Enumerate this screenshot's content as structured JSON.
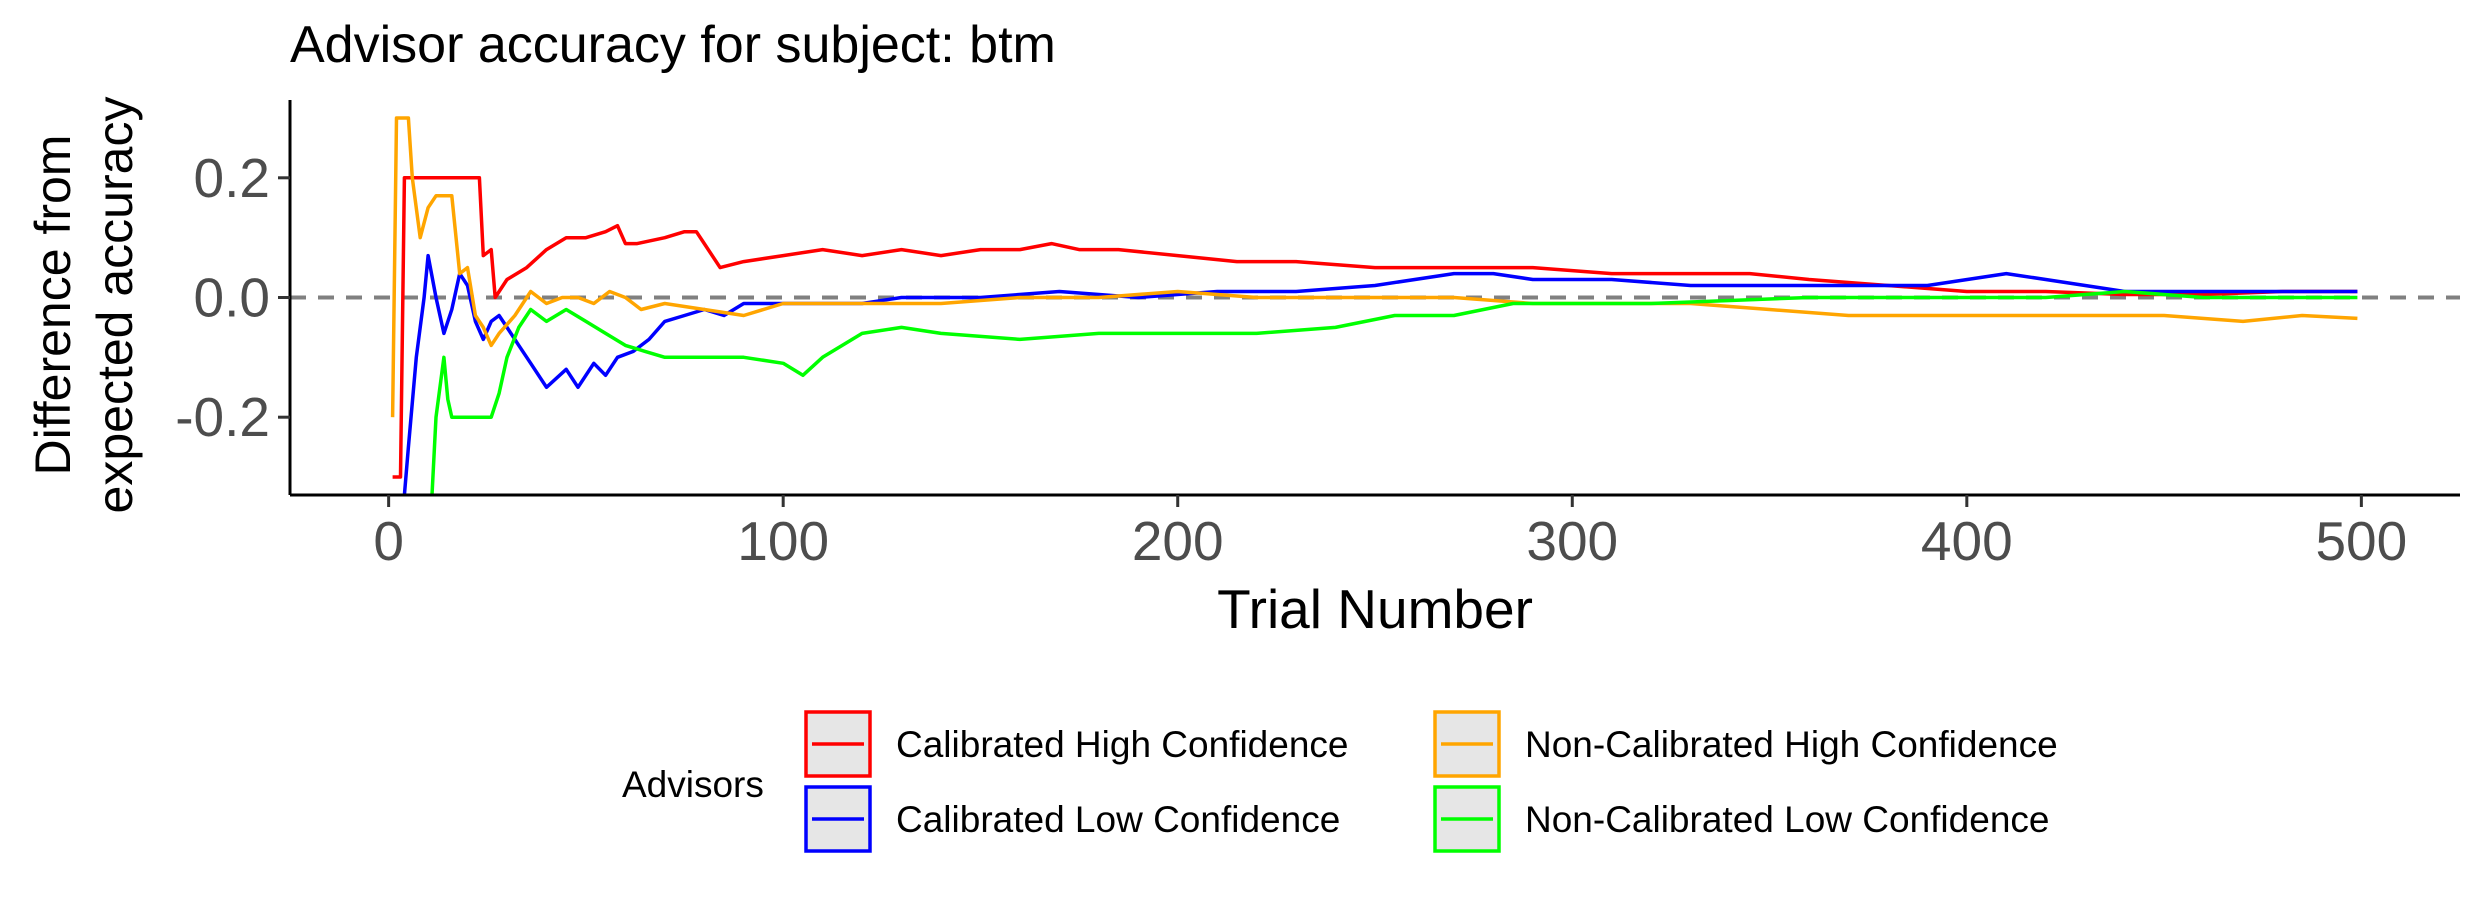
{
  "chart_data": {
    "type": "line",
    "title": "Advisor accuracy for subject: btm",
    "xlabel": "Trial Number",
    "ylabel": [
      "Difference from",
      "expected accuracy"
    ],
    "xlim": [
      -25,
      525
    ],
    "ylim": [
      -0.33,
      0.33
    ],
    "xticks": [
      0,
      100,
      200,
      300,
      400,
      500
    ],
    "yticks": [
      -0.2,
      0.0,
      0.2
    ],
    "xtick_labels": [
      "0",
      "100",
      "200",
      "300",
      "400",
      "500"
    ],
    "ytick_labels": [
      "-0.2",
      "0.0",
      "0.2"
    ],
    "reference_line": {
      "y": 0,
      "style": "dashed",
      "color": "#808080"
    },
    "grid": false,
    "legend": {
      "title": "Advisors",
      "position": "bottom",
      "entries": [
        "Calibrated High Confidence",
        "Non-Calibrated High Confidence",
        "Calibrated Low Confidence",
        "Non-Calibrated Low Confidence"
      ]
    },
    "series": [
      {
        "name": "Calibrated High Confidence",
        "color": "#ff0000",
        "points": [
          [
            1,
            -0.3
          ],
          [
            3,
            -0.3
          ],
          [
            4,
            0.2
          ],
          [
            10,
            0.2
          ],
          [
            16,
            0.2
          ],
          [
            20,
            0.2
          ],
          [
            23,
            0.2
          ],
          [
            24,
            0.07
          ],
          [
            26,
            0.08
          ],
          [
            27,
            0.0
          ],
          [
            30,
            0.03
          ],
          [
            35,
            0.05
          ],
          [
            40,
            0.08
          ],
          [
            45,
            0.1
          ],
          [
            50,
            0.1
          ],
          [
            55,
            0.11
          ],
          [
            58,
            0.12
          ],
          [
            60,
            0.09
          ],
          [
            63,
            0.09
          ],
          [
            70,
            0.1
          ],
          [
            75,
            0.11
          ],
          [
            78,
            0.11
          ],
          [
            80,
            0.09
          ],
          [
            84,
            0.05
          ],
          [
            90,
            0.06
          ],
          [
            100,
            0.07
          ],
          [
            110,
            0.08
          ],
          [
            120,
            0.07
          ],
          [
            130,
            0.08
          ],
          [
            140,
            0.07
          ],
          [
            150,
            0.08
          ],
          [
            160,
            0.08
          ],
          [
            168,
            0.09
          ],
          [
            175,
            0.08
          ],
          [
            185,
            0.08
          ],
          [
            200,
            0.07
          ],
          [
            215,
            0.06
          ],
          [
            230,
            0.06
          ],
          [
            250,
            0.05
          ],
          [
            270,
            0.05
          ],
          [
            290,
            0.05
          ],
          [
            310,
            0.04
          ],
          [
            330,
            0.04
          ],
          [
            345,
            0.04
          ],
          [
            360,
            0.03
          ],
          [
            380,
            0.02
          ],
          [
            400,
            0.01
          ],
          [
            420,
            0.01
          ],
          [
            440,
            0.005
          ],
          [
            460,
            0.005
          ],
          [
            480,
            0.01
          ],
          [
            499,
            0.01
          ]
        ]
      },
      {
        "name": "Calibrated Low Confidence",
        "color": "#0000ff",
        "points": [
          [
            4,
            -0.33
          ],
          [
            5,
            -0.25
          ],
          [
            7,
            -0.1
          ],
          [
            9,
            0.0
          ],
          [
            10,
            0.07
          ],
          [
            12,
            0.0
          ],
          [
            14,
            -0.06
          ],
          [
            16,
            -0.02
          ],
          [
            18,
            0.04
          ],
          [
            20,
            0.02
          ],
          [
            22,
            -0.04
          ],
          [
            24,
            -0.07
          ],
          [
            26,
            -0.04
          ],
          [
            28,
            -0.03
          ],
          [
            30,
            -0.05
          ],
          [
            33,
            -0.08
          ],
          [
            36,
            -0.11
          ],
          [
            40,
            -0.15
          ],
          [
            45,
            -0.12
          ],
          [
            48,
            -0.15
          ],
          [
            52,
            -0.11
          ],
          [
            55,
            -0.13
          ],
          [
            58,
            -0.1
          ],
          [
            62,
            -0.09
          ],
          [
            66,
            -0.07
          ],
          [
            70,
            -0.04
          ],
          [
            75,
            -0.03
          ],
          [
            80,
            -0.02
          ],
          [
            85,
            -0.03
          ],
          [
            90,
            -0.01
          ],
          [
            100,
            -0.01
          ],
          [
            110,
            -0.01
          ],
          [
            120,
            -0.01
          ],
          [
            130,
            0.0
          ],
          [
            150,
            0.0
          ],
          [
            170,
            0.01
          ],
          [
            190,
            0.0
          ],
          [
            210,
            0.01
          ],
          [
            230,
            0.01
          ],
          [
            250,
            0.02
          ],
          [
            270,
            0.04
          ],
          [
            280,
            0.04
          ],
          [
            290,
            0.03
          ],
          [
            310,
            0.03
          ],
          [
            330,
            0.02
          ],
          [
            350,
            0.02
          ],
          [
            370,
            0.02
          ],
          [
            390,
            0.02
          ],
          [
            410,
            0.04
          ],
          [
            420,
            0.03
          ],
          [
            440,
            0.01
          ],
          [
            460,
            0.01
          ],
          [
            480,
            0.01
          ],
          [
            499,
            0.01
          ]
        ]
      },
      {
        "name": "Non-Calibrated High Confidence",
        "color": "#ffa500",
        "points": [
          [
            1,
            -0.2
          ],
          [
            2,
            0.3
          ],
          [
            5,
            0.3
          ],
          [
            6,
            0.2
          ],
          [
            8,
            0.1
          ],
          [
            10,
            0.15
          ],
          [
            12,
            0.17
          ],
          [
            16,
            0.17
          ],
          [
            18,
            0.04
          ],
          [
            20,
            0.05
          ],
          [
            22,
            -0.03
          ],
          [
            24,
            -0.05
          ],
          [
            26,
            -0.08
          ],
          [
            28,
            -0.06
          ],
          [
            32,
            -0.03
          ],
          [
            36,
            0.01
          ],
          [
            40,
            -0.01
          ],
          [
            44,
            0.0
          ],
          [
            48,
            0.0
          ],
          [
            52,
            -0.01
          ],
          [
            56,
            0.01
          ],
          [
            60,
            0.0
          ],
          [
            64,
            -0.02
          ],
          [
            70,
            -0.01
          ],
          [
            80,
            -0.02
          ],
          [
            90,
            -0.03
          ],
          [
            100,
            -0.01
          ],
          [
            120,
            -0.01
          ],
          [
            140,
            -0.01
          ],
          [
            160,
            0.0
          ],
          [
            180,
            0.0
          ],
          [
            200,
            0.01
          ],
          [
            220,
            0.0
          ],
          [
            250,
            0.0
          ],
          [
            270,
            0.0
          ],
          [
            290,
            -0.01
          ],
          [
            310,
            -0.01
          ],
          [
            330,
            -0.01
          ],
          [
            350,
            -0.02
          ],
          [
            370,
            -0.03
          ],
          [
            390,
            -0.03
          ],
          [
            410,
            -0.03
          ],
          [
            430,
            -0.03
          ],
          [
            450,
            -0.03
          ],
          [
            470,
            -0.04
          ],
          [
            485,
            -0.03
          ],
          [
            499,
            -0.035
          ]
        ]
      },
      {
        "name": "Non-Calibrated Low Confidence",
        "color": "#00ff00",
        "points": [
          [
            11,
            -0.33
          ],
          [
            12,
            -0.2
          ],
          [
            14,
            -0.1
          ],
          [
            15,
            -0.17
          ],
          [
            16,
            -0.2
          ],
          [
            18,
            -0.2
          ],
          [
            20,
            -0.2
          ],
          [
            22,
            -0.2
          ],
          [
            24,
            -0.2
          ],
          [
            26,
            -0.2
          ],
          [
            28,
            -0.16
          ],
          [
            30,
            -0.1
          ],
          [
            33,
            -0.05
          ],
          [
            36,
            -0.02
          ],
          [
            40,
            -0.04
          ],
          [
            45,
            -0.02
          ],
          [
            50,
            -0.04
          ],
          [
            55,
            -0.06
          ],
          [
            60,
            -0.08
          ],
          [
            65,
            -0.09
          ],
          [
            70,
            -0.1
          ],
          [
            80,
            -0.1
          ],
          [
            90,
            -0.1
          ],
          [
            100,
            -0.11
          ],
          [
            105,
            -0.13
          ],
          [
            110,
            -0.1
          ],
          [
            120,
            -0.06
          ],
          [
            130,
            -0.05
          ],
          [
            140,
            -0.06
          ],
          [
            160,
            -0.07
          ],
          [
            180,
            -0.06
          ],
          [
            200,
            -0.06
          ],
          [
            220,
            -0.06
          ],
          [
            240,
            -0.05
          ],
          [
            255,
            -0.03
          ],
          [
            270,
            -0.03
          ],
          [
            285,
            -0.01
          ],
          [
            300,
            -0.01
          ],
          [
            320,
            -0.01
          ],
          [
            340,
            -0.005
          ],
          [
            360,
            0.0
          ],
          [
            380,
            0.0
          ],
          [
            400,
            0.0
          ],
          [
            420,
            0.0
          ],
          [
            440,
            0.01
          ],
          [
            460,
            0.0
          ],
          [
            480,
            0.0
          ],
          [
            499,
            0.0
          ]
        ]
      }
    ]
  }
}
